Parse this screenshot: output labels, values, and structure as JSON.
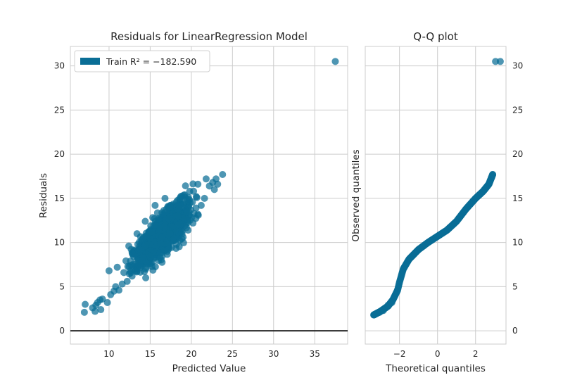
{
  "chart_data": [
    {
      "type": "scatter",
      "title": "Residuals for LinearRegression Model",
      "xlabel": "Predicted Value",
      "ylabel": "Residuals",
      "xlim": [
        5.3,
        39
      ],
      "ylim": [
        -1.5,
        32.2
      ],
      "xticks": [
        10,
        15,
        20,
        25,
        30,
        35
      ],
      "yticks": [
        0,
        5,
        10,
        15,
        20,
        25,
        30
      ],
      "grid": true,
      "legend": {
        "position": "top-left",
        "entries": [
          {
            "label": "Train R² = −182.590",
            "color": "#0a6e96"
          }
        ]
      },
      "reference_line": {
        "y": 0,
        "color": "#262626"
      },
      "series": [
        {
          "name": "Train R² = −182.590",
          "color": "#0a6e96",
          "points": [
            [
              7.0,
              2.1
            ],
            [
              7.1,
              3.0
            ],
            [
              8.0,
              2.6
            ],
            [
              8.4,
              2.9
            ],
            [
              8.6,
              3.2
            ],
            [
              8.9,
              3.5
            ],
            [
              9.2,
              3.6
            ],
            [
              8.3,
              2.2
            ],
            [
              9.0,
              2.4
            ],
            [
              9.8,
              3.2
            ],
            [
              10.2,
              4.1
            ],
            [
              10.6,
              4.5
            ],
            [
              11.2,
              4.6
            ],
            [
              10.8,
              5.0
            ],
            [
              10.0,
              6.8
            ],
            [
              11.0,
              7.2
            ],
            [
              11.6,
              5.3
            ],
            [
              12.2,
              5.6
            ],
            [
              12.8,
              6.2
            ],
            [
              13.2,
              6.8
            ],
            [
              13.6,
              7.4
            ],
            [
              12.6,
              7.9
            ],
            [
              11.8,
              6.6
            ],
            [
              13.8,
              9.2
            ],
            [
              14.4,
              9.6
            ],
            [
              14.6,
              10.8
            ],
            [
              15.2,
              11.2
            ],
            [
              15.6,
              12.0
            ],
            [
              16.0,
              12.6
            ],
            [
              16.6,
              13.2
            ],
            [
              17.0,
              13.8
            ],
            [
              17.4,
              14.0
            ],
            [
              18.2,
              14.6
            ],
            [
              18.6,
              15.0
            ],
            [
              19.2,
              15.4
            ],
            [
              16.8,
              15.0
            ],
            [
              15.6,
              14.2
            ],
            [
              14.4,
              12.4
            ],
            [
              13.4,
              11.0
            ],
            [
              12.4,
              9.6
            ],
            [
              15.0,
              8.4
            ],
            [
              16.2,
              8.8
            ],
            [
              17.2,
              9.2
            ],
            [
              18.2,
              9.8
            ],
            [
              19.0,
              10.6
            ],
            [
              19.6,
              11.4
            ],
            [
              20.2,
              12.2
            ],
            [
              20.8,
              13.2
            ],
            [
              21.2,
              14.2
            ],
            [
              20.6,
              15.2
            ],
            [
              19.8,
              15.8
            ],
            [
              21.6,
              15.0
            ],
            [
              22.2,
              16.4
            ],
            [
              22.6,
              16.8
            ],
            [
              23.0,
              17.2
            ],
            [
              21.8,
              17.2
            ],
            [
              20.8,
              16.6
            ],
            [
              22.8,
              16.0
            ],
            [
              23.8,
              17.7
            ],
            [
              23.2,
              16.6
            ],
            [
              14.0,
              8.0
            ],
            [
              13.0,
              8.4
            ],
            [
              18.4,
              12.0
            ],
            [
              17.4,
              11.0
            ],
            [
              37.5,
              30.5
            ]
          ],
          "band": {
            "x_range": [
              11.5,
              21.5
            ],
            "slope": 0.84,
            "intercept": -3.0,
            "spread": 1.9,
            "points": 900,
            "seed": 7
          }
        }
      ]
    },
    {
      "type": "scatter",
      "title": "Q-Q plot",
      "xlabel": "Theoretical quantiles",
      "ylabel": "Observed quantiles",
      "xlim": [
        -3.8,
        3.6
      ],
      "ylim": [
        -1.5,
        32.2
      ],
      "xticks": [
        -2,
        0,
        2
      ],
      "yticks": [
        0,
        5,
        10,
        15,
        20,
        25,
        30
      ],
      "grid": true,
      "series": [
        {
          "name": "Observed quantiles",
          "color": "#0a6e96",
          "curve_knots": [
            [
              -3.35,
              1.8
            ],
            [
              -3.0,
              2.2
            ],
            [
              -2.6,
              2.8
            ],
            [
              -2.35,
              3.5
            ],
            [
              -2.1,
              4.6
            ],
            [
              -2.0,
              5.5
            ],
            [
              -1.8,
              7.0
            ],
            [
              -1.5,
              8.1
            ],
            [
              -1.0,
              9.2
            ],
            [
              -0.5,
              10.0
            ],
            [
              0.0,
              10.7
            ],
            [
              0.5,
              11.4
            ],
            [
              1.0,
              12.4
            ],
            [
              1.5,
              13.8
            ],
            [
              2.0,
              15.0
            ],
            [
              2.4,
              15.8
            ],
            [
              2.7,
              16.6
            ],
            [
              2.9,
              17.7
            ]
          ],
          "curve_points": 420,
          "points": [
            [
              -3.35,
              1.8
            ],
            [
              -3.05,
              2.1
            ],
            [
              -2.85,
              2.3
            ],
            [
              -2.6,
              2.9
            ],
            [
              -2.4,
              3.2
            ],
            [
              2.9,
              17.7
            ],
            [
              3.05,
              30.5
            ],
            [
              3.3,
              30.5
            ]
          ]
        }
      ]
    }
  ]
}
